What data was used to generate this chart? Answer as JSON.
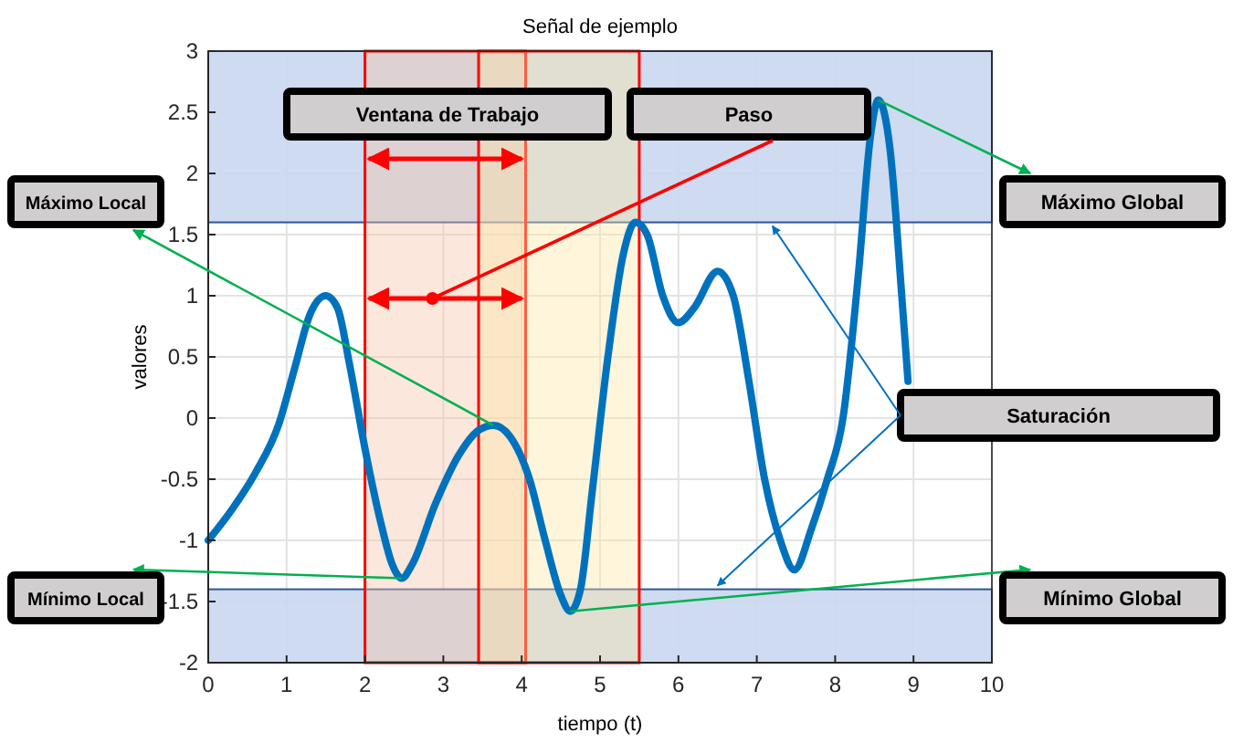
{
  "chart_data": {
    "type": "line",
    "title": "Señal de ejemplo",
    "xlabel": "tiempo (t)",
    "ylabel": "valores",
    "x": [
      0,
      0.3,
      0.6,
      0.9,
      1.1,
      1.3,
      1.5,
      1.65,
      1.8,
      2.0,
      2.2,
      2.35,
      2.47,
      2.6,
      2.9,
      3.2,
      3.45,
      3.64,
      3.85,
      4.1,
      4.3,
      4.5,
      4.62,
      4.75,
      4.9,
      5.1,
      5.3,
      5.45,
      5.6,
      5.8,
      6.0,
      6.2,
      6.5,
      6.7,
      6.9,
      7.1,
      7.3,
      7.48,
      7.7,
      7.9,
      8.1,
      8.3,
      8.45,
      8.55,
      8.7,
      8.85,
      8.93
    ],
    "series": [
      {
        "color": "#0072bd",
        "values": [
          -1,
          -0.75,
          -0.45,
          -0.05,
          0.4,
          0.85,
          1.0,
          0.9,
          0.45,
          -0.25,
          -0.85,
          -1.2,
          -1.31,
          -1.2,
          -0.7,
          -0.3,
          -0.1,
          -0.06,
          -0.15,
          -0.5,
          -1.0,
          -1.45,
          -1.58,
          -1.4,
          -0.6,
          0.5,
          1.35,
          1.6,
          1.5,
          1.0,
          0.78,
          0.9,
          1.2,
          1.0,
          0.3,
          -0.5,
          -1.0,
          -1.24,
          -0.9,
          -0.5,
          0.0,
          1.2,
          2.3,
          2.6,
          2.2,
          1.0,
          0.3
        ]
      }
    ],
    "xlim": [
      0,
      10
    ],
    "ylim": [
      -2,
      3
    ],
    "xticks": [
      0,
      1,
      2,
      3,
      4,
      5,
      6,
      7,
      8,
      9,
      10
    ],
    "yticks": [
      -2,
      -1.5,
      -1,
      -0.5,
      0,
      0.5,
      1,
      1.5,
      2,
      2.5,
      3
    ],
    "grid": true,
    "legend": false,
    "marker": "none",
    "line_style": "solid",
    "bands": [
      {
        "axis": "y",
        "from": 1.6,
        "to": 3,
        "color": "#c9d7ee"
      },
      {
        "axis": "y",
        "from": -2,
        "to": -1.4,
        "color": "#c9d7ee"
      },
      {
        "axis": "x",
        "from": 2,
        "to": 4.05,
        "color": "#f6c4a6"
      },
      {
        "axis": "x",
        "from": 3.45,
        "to": 5.5,
        "color": "#fde7a6"
      }
    ],
    "annotations": [
      "Ventana de Trabajo",
      "Paso",
      {
        "text": "Máximo Local",
        "x": 3.64,
        "y": -0.06
      },
      {
        "text": "Máximo Global",
        "x": 8.55,
        "y": 2.6
      },
      "Saturación",
      {
        "text": "Mínimo Local",
        "x": 2.47,
        "y": -1.31
      },
      {
        "text": "Mínimo Global",
        "x": 4.62,
        "y": -1.58
      }
    ]
  }
}
